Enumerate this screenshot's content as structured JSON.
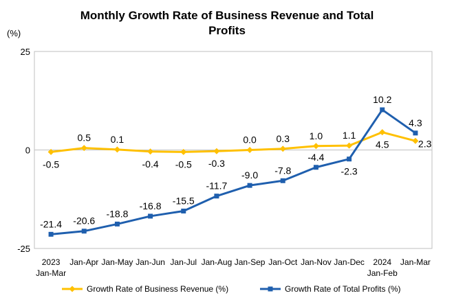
{
  "chart_data": {
    "type": "line",
    "title_lines": [
      "Monthly Growth Rate of Business Revenue and Total",
      "Profits"
    ],
    "ylabel": "(%)",
    "ylim": [
      -25,
      25
    ],
    "yticks": [
      "25",
      "0",
      "-25"
    ],
    "categories": [
      [
        "2023",
        "Jan-Mar"
      ],
      [
        "Jan-Apr"
      ],
      [
        "Jan-May"
      ],
      [
        "Jan-Jun"
      ],
      [
        "Jan-Jul"
      ],
      [
        "Jan-Aug"
      ],
      [
        "Jan-Sep"
      ],
      [
        "Jan-Oct"
      ],
      [
        "Jan-Nov"
      ],
      [
        "Jan-Dec"
      ],
      [
        "2024",
        "Jan-Feb"
      ],
      [
        "Jan-Mar"
      ]
    ],
    "series": [
      {
        "name": "Growth Rate of Business Revenue (%)",
        "color": "#ffc000",
        "marker": "diamond",
        "values": [
          -0.5,
          0.5,
          0.1,
          -0.4,
          -0.5,
          -0.3,
          0.0,
          0.3,
          1.0,
          1.1,
          4.5,
          2.3
        ],
        "labels": [
          "-0.5",
          "0.5",
          "0.1",
          "-0.4",
          "-0.5",
          "-0.3",
          "0.0",
          "0.3",
          "1.0",
          "1.1",
          "4.5",
          "2.3"
        ],
        "label_pos": [
          "below",
          "above",
          "above",
          "below",
          "below",
          "below",
          "above",
          "above",
          "above",
          "above",
          "below",
          "right"
        ]
      },
      {
        "name": "Growth Rate of Total Profits (%)",
        "color": "#1f5fae",
        "marker": "square",
        "values": [
          -21.4,
          -20.6,
          -18.8,
          -16.8,
          -15.5,
          -11.7,
          -9.0,
          -7.8,
          -4.4,
          -2.3,
          10.2,
          4.3
        ],
        "labels": [
          "-21.4",
          "-20.6",
          "-18.8",
          "-16.8",
          "-15.5",
          "-11.7",
          "-9.0",
          "-7.8",
          "-4.4",
          "-2.3",
          "10.2",
          "4.3"
        ],
        "label_pos": [
          "above",
          "above",
          "above",
          "above",
          "above",
          "above",
          "above",
          "above",
          "above",
          "below",
          "above",
          "above"
        ]
      }
    ],
    "legend_position": "bottom",
    "grid": false
  }
}
